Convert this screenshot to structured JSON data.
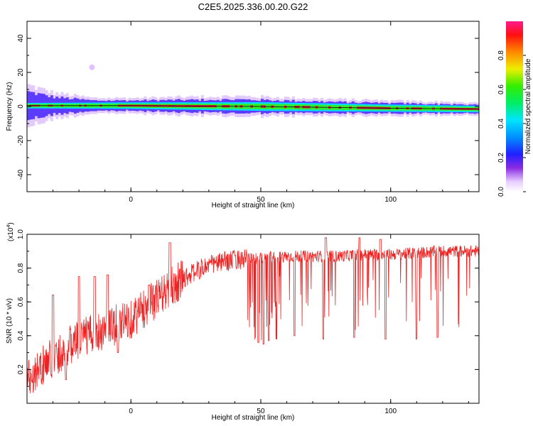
{
  "title": "C2E5.2025.336.00.20.G22",
  "colors": {
    "snr_line": "#ee2222",
    "band_core": "#e8103c",
    "band_edge": "#33ee22",
    "band_outer": "#00e0ff",
    "halo": "#4422ff",
    "halo_faint": "#cc99ff",
    "center_line": "#000000"
  },
  "chart_data": [
    {
      "type": "heatmap",
      "name": "spectrogram",
      "xlabel": "Height of straight line (km)",
      "ylabel": "Frequency (Hz)",
      "xlim": [
        -40,
        134
      ],
      "ylim": [
        -50,
        50
      ],
      "xticks": [
        0,
        50,
        100
      ],
      "yticks": [
        40,
        20,
        0,
        -20,
        -40
      ],
      "colorbar": {
        "label": "Normalized spectral amplitude",
        "range": [
          0,
          1
        ],
        "ticks": [
          "0.0",
          "0.2",
          "0.4",
          "0.6",
          "0.8"
        ],
        "tick_values": [
          0,
          0.2,
          0.4,
          0.6,
          0.8
        ]
      },
      "band": {
        "center_hz": 0,
        "center_drift_hz": [
          [
            -40,
            0.5
          ],
          [
            0,
            0.5
          ],
          [
            50,
            0
          ],
          [
            100,
            -1
          ],
          [
            134,
            -1.5
          ]
        ],
        "halo_half_width_hz": [
          [
            -40,
            8
          ],
          [
            -30,
            5
          ],
          [
            -15,
            3
          ],
          [
            0,
            3
          ],
          [
            40,
            4
          ],
          [
            90,
            3
          ],
          [
            134,
            2.5
          ]
        ],
        "core_half_width_hz": [
          [
            -40,
            1
          ],
          [
            0,
            1.2
          ],
          [
            50,
            1.6
          ],
          [
            100,
            1.3
          ],
          [
            134,
            1.2
          ]
        ],
        "blob": {
          "x": -15,
          "y_hz": 23
        }
      }
    },
    {
      "type": "line",
      "name": "snr",
      "xlabel": "Height of straight line (km)",
      "ylabel": "SNR (10 * v/v)",
      "y_scale_label": "(x10",
      "y_scale_exp": "4",
      "y_scale_close": ")",
      "xlim": [
        -40,
        134
      ],
      "ylim": [
        0,
        1.0
      ],
      "xticks": [
        0,
        50,
        100
      ],
      "yticks": [
        0.2,
        0.4,
        0.6,
        0.8,
        1.0
      ],
      "ytick_labels": [
        "0.2",
        "0.4",
        "0.6",
        "0.8",
        "1.0"
      ],
      "trend": [
        [
          -40,
          0.15
        ],
        [
          -30,
          0.27
        ],
        [
          -20,
          0.38
        ],
        [
          -10,
          0.44
        ],
        [
          0,
          0.5
        ],
        [
          10,
          0.62
        ],
        [
          20,
          0.74
        ],
        [
          30,
          0.82
        ],
        [
          40,
          0.85
        ],
        [
          50,
          0.86
        ],
        [
          60,
          0.87
        ],
        [
          70,
          0.87
        ],
        [
          80,
          0.87
        ],
        [
          90,
          0.88
        ],
        [
          100,
          0.88
        ],
        [
          110,
          0.89
        ],
        [
          120,
          0.9
        ],
        [
          134,
          0.9
        ]
      ],
      "peaks": [
        [
          -30,
          0.64
        ],
        [
          -20,
          0.75
        ],
        [
          -14,
          0.75
        ],
        [
          -9,
          0.76
        ],
        [
          7,
          0.7
        ],
        [
          15,
          0.95
        ],
        [
          75,
          0.98
        ],
        [
          88,
          0.98
        ],
        [
          96,
          0.97
        ]
      ],
      "dips": [
        [
          -25,
          0.14
        ],
        [
          -5,
          0.3
        ],
        [
          49,
          0.36
        ],
        [
          51,
          0.35
        ],
        [
          53,
          0.37
        ],
        [
          56,
          0.38
        ],
        [
          63,
          0.4
        ],
        [
          74,
          0.38
        ],
        [
          86,
          0.39
        ],
        [
          98,
          0.38
        ],
        [
          110,
          0.38
        ],
        [
          118,
          0.39
        ]
      ]
    }
  ]
}
